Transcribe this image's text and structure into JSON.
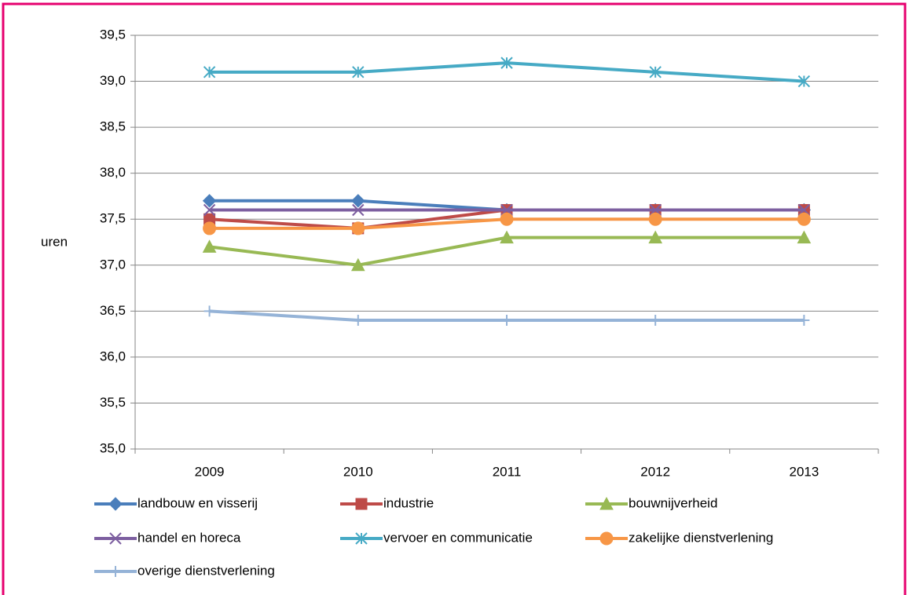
{
  "chart_data": {
    "type": "line",
    "y_label": "uren",
    "categories": [
      "2009",
      "2010",
      "2011",
      "2012",
      "2013"
    ],
    "ylim": [
      35,
      39.5
    ],
    "yticks": [
      {
        "value": 35,
        "label": "35,0"
      },
      {
        "value": 35.5,
        "label": "35,5"
      },
      {
        "value": 36,
        "label": "36,0"
      },
      {
        "value": 36.5,
        "label": "36,5"
      },
      {
        "value": 37,
        "label": "37,0"
      },
      {
        "value": 37.5,
        "label": "37,5"
      },
      {
        "value": 38,
        "label": "38,0"
      },
      {
        "value": 38.5,
        "label": "38,5"
      },
      {
        "value": 39,
        "label": "39,0"
      },
      {
        "value": 39.5,
        "label": "39,5"
      }
    ],
    "grid": true,
    "series": [
      {
        "name": "landbouw en visserij",
        "color": "#4a7ebb",
        "marker": "diamond",
        "values": [
          37.7,
          37.7,
          37.6,
          37.6,
          37.6
        ]
      },
      {
        "name": "industrie",
        "color": "#be4b48",
        "marker": "square",
        "values": [
          37.5,
          37.4,
          37.6,
          37.6,
          37.6
        ]
      },
      {
        "name": "bouwnijverheid",
        "color": "#98b954",
        "marker": "triangle",
        "values": [
          37.2,
          37.0,
          37.3,
          37.3,
          37.3
        ]
      },
      {
        "name": "handel en horeca",
        "color": "#7d5fa0",
        "marker": "x",
        "values": [
          37.6,
          37.6,
          37.6,
          37.6,
          37.6
        ]
      },
      {
        "name": "vervoer en communicatie",
        "color": "#46aac5",
        "marker": "star",
        "values": [
          39.1,
          39.1,
          39.2,
          39.1,
          39.0
        ]
      },
      {
        "name": "zakelijke dienstverlening",
        "color": "#f79646",
        "marker": "circle",
        "values": [
          37.4,
          37.4,
          37.5,
          37.5,
          37.5
        ]
      },
      {
        "name": "overige dienstverlening",
        "color": "#95b3d7",
        "marker": "plus",
        "values": [
          36.5,
          36.4,
          36.4,
          36.4,
          36.4
        ]
      }
    ]
  }
}
